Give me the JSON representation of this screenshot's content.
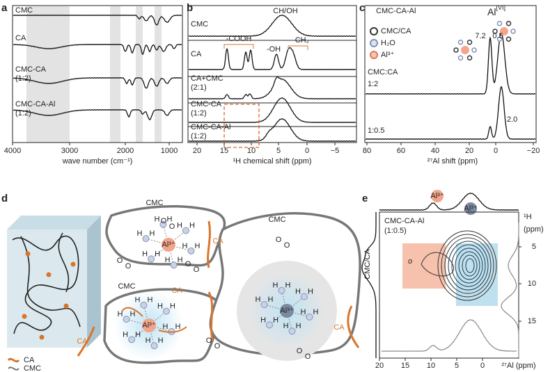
{
  "a": {
    "label": "a",
    "samples": [
      {
        "name": "CMC"
      },
      {
        "name": "CA"
      },
      {
        "name": "CMC-CA",
        "ratio": "(1:2)"
      },
      {
        "name": "CMC-CA-Al",
        "ratio": "(1:2)"
      }
    ],
    "xticks": [
      "4000",
      "3000",
      "2000",
      "1000"
    ],
    "xlabel": "wave number (cm⁻¹)"
  },
  "b": {
    "label": "b",
    "samples": [
      {
        "name": "CMC"
      },
      {
        "name": "CA"
      },
      {
        "name": "CA+CMC",
        "ratio": "(2:1)"
      },
      {
        "name": "CMC-CA",
        "ratio": "(1:2)"
      },
      {
        "name": "CMC-CA-Al",
        "ratio": "(1:2)"
      }
    ],
    "annotations": [
      "CH/OH",
      "-COOH",
      "-OH",
      "-CH₂"
    ],
    "xticks": [
      "20",
      "15",
      "10",
      "5",
      "0",
      "−5"
    ],
    "xlabel": "¹H chemical shift (ppm)"
  },
  "c": {
    "label": "c",
    "title": "CMC-CA-Al",
    "peak_label": {
      "base": "Al",
      "sup": "[VI]"
    },
    "legend": [
      "CMC/CA",
      "H₂O",
      "Al³⁺"
    ],
    "ratio_header": "CMC:CA",
    "ratios": [
      "1:2",
      "1:0.5"
    ],
    "peak_values": [
      "7.2",
      "0.5",
      "2.0"
    ],
    "xticks": [
      "80",
      "60",
      "40",
      "20",
      "0",
      "−20"
    ],
    "xlabel": "²⁷Al shift (ppm)"
  },
  "d": {
    "label": "d",
    "legend": [
      "CA",
      "CMC"
    ],
    "cmc_labels": [
      "CMC",
      "CMC",
      "CMC"
    ],
    "ca_labels": [
      "CA",
      "CA",
      "CA",
      "CA"
    ],
    "ion_labels": [
      "Al³⁺",
      "Al³⁺",
      "Al³⁺"
    ],
    "h_atom": "H",
    "o_atom": "O"
  },
  "e": {
    "label": "e",
    "top_ions": [
      "Al³⁺",
      "Al³⁺"
    ],
    "sample": "CMC-CA-Al",
    "ratio": "(1:0.5)",
    "left_label": "CMC/CA",
    "marker": "o",
    "y_unit": {
      "nucleus": "¹H",
      "unit": "(ppm)"
    },
    "yticks": [
      "5",
      "10",
      "15"
    ],
    "xticks": [
      "20",
      "15",
      "10",
      "5",
      "0"
    ],
    "xlabel": "²⁷Al (ppm)"
  }
}
